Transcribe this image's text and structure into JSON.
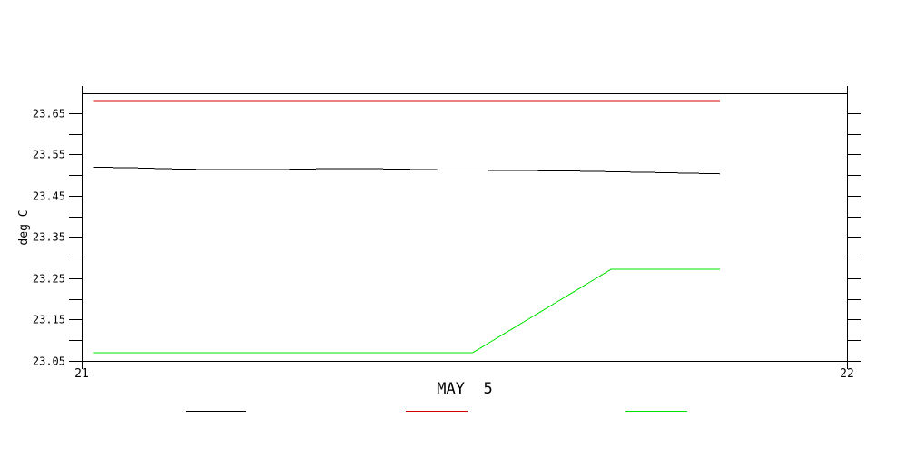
{
  "page": {
    "background_color": "#ffffff",
    "axis_color": "#000000"
  },
  "chart_data": {
    "type": "line",
    "title": "",
    "xlabel": "",
    "xlabel_date": "MAY  5",
    "ylabel": "deg C",
    "grid": "off",
    "legend_position": "bottom",
    "x_axis": {
      "min": 21,
      "max": 22,
      "ticks": [
        {
          "value": 21,
          "label": "21"
        },
        {
          "value": 22,
          "label": "22"
        }
      ]
    },
    "y_axis": {
      "min": 23.05,
      "max": 23.698,
      "minor_tick_step": 0.05,
      "ticks": [
        {
          "value": 23.05,
          "label": "23.05"
        },
        {
          "value": 23.1,
          "label": ""
        },
        {
          "value": 23.15,
          "label": "23.15"
        },
        {
          "value": 23.2,
          "label": ""
        },
        {
          "value": 23.25,
          "label": "23.25"
        },
        {
          "value": 23.3,
          "label": ""
        },
        {
          "value": 23.35,
          "label": "23.35"
        },
        {
          "value": 23.4,
          "label": ""
        },
        {
          "value": 23.45,
          "label": "23.45"
        },
        {
          "value": 23.5,
          "label": ""
        },
        {
          "value": 23.55,
          "label": "23.55"
        },
        {
          "value": 23.6,
          "label": ""
        },
        {
          "value": 23.65,
          "label": "23.65"
        }
      ]
    },
    "series": [
      {
        "name": "black-temperature-trace",
        "color": "#000000",
        "points": [
          [
            21.015,
            23.519
          ],
          [
            21.06,
            23.518
          ],
          [
            21.12,
            23.515
          ],
          [
            21.18,
            23.513
          ],
          [
            21.24,
            23.513
          ],
          [
            21.3,
            23.515
          ],
          [
            21.35,
            23.516
          ],
          [
            21.4,
            23.515
          ],
          [
            21.46,
            23.513
          ],
          [
            21.52,
            23.512
          ],
          [
            21.58,
            23.511
          ],
          [
            21.64,
            23.51
          ],
          [
            21.7,
            23.508
          ],
          [
            21.76,
            23.506
          ],
          [
            21.81,
            23.504
          ],
          [
            21.834,
            23.503
          ]
        ]
      },
      {
        "name": "red-temperature-trace",
        "color": "#d40000",
        "points": [
          [
            21.015,
            23.68
          ],
          [
            21.834,
            23.68
          ]
        ]
      },
      {
        "name": "green-temperature-trace",
        "color": "#00e400",
        "points": [
          [
            21.015,
            23.07
          ],
          [
            21.511,
            23.07
          ],
          [
            21.692,
            23.272
          ],
          [
            21.834,
            23.272
          ]
        ]
      }
    ],
    "legend": {
      "entries": [
        {
          "name": "black-series-swatch",
          "label": "",
          "color": "#000000"
        },
        {
          "name": "red-series-swatch",
          "label": "",
          "color": "#d40000"
        },
        {
          "name": "green-series-swatch",
          "label": "",
          "color": "#00e400"
        }
      ]
    }
  }
}
